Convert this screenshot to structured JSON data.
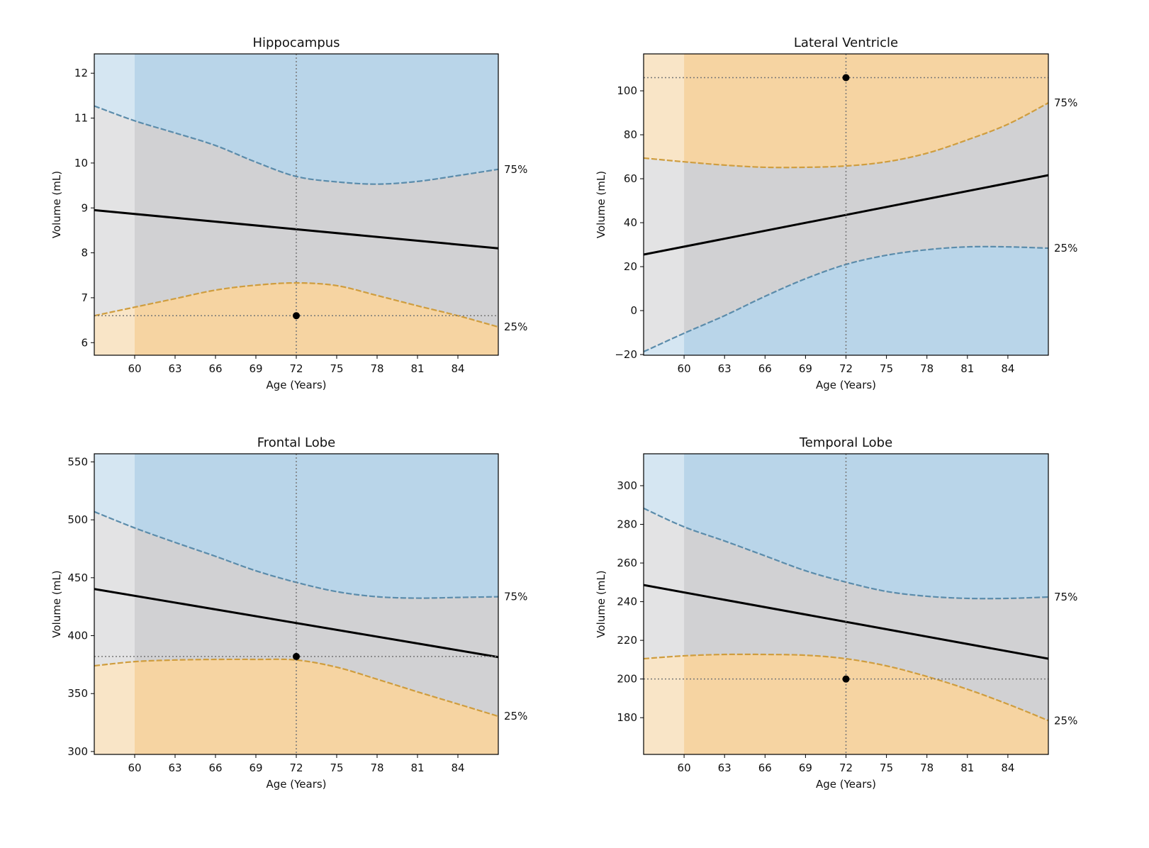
{
  "chart_data": [
    {
      "type": "line",
      "title": "Hippocampus",
      "xlabel": "Age (Years)",
      "ylabel": "Volume (mL)",
      "xlim": [
        57,
        87
      ],
      "ylim": [
        5.72,
        12.43
      ],
      "xticks": [
        60,
        63,
        66,
        69,
        72,
        75,
        78,
        81,
        84
      ],
      "yticks": [
        6,
        7,
        8,
        9,
        10,
        11,
        12
      ],
      "reference_line": {
        "x": 72,
        "y": 6.6
      },
      "patient_point": {
        "age": 72,
        "volume": 6.6
      },
      "upper_region": "blue",
      "lower_region": "orange",
      "series": [
        {
          "name": "75%",
          "x": [
            57,
            60,
            63,
            66,
            69,
            72,
            75,
            78,
            81,
            84,
            87
          ],
          "y": [
            11.27,
            10.94,
            10.67,
            10.39,
            10.02,
            9.7,
            9.58,
            9.53,
            9.59,
            9.72,
            9.86
          ]
        },
        {
          "name": "median",
          "x": [
            57,
            87
          ],
          "y": [
            8.95,
            8.1
          ]
        },
        {
          "name": "25%",
          "x": [
            57,
            60,
            63,
            66,
            69,
            72,
            75,
            78,
            81,
            84,
            87
          ],
          "y": [
            6.6,
            6.79,
            6.98,
            7.17,
            7.28,
            7.33,
            7.27,
            7.05,
            6.82,
            6.6,
            6.35
          ]
        }
      ]
    },
    {
      "type": "line",
      "title": "Lateral Ventricle",
      "xlabel": "Age (Years)",
      "ylabel": "Volume (mL)",
      "xlim": [
        57,
        87
      ],
      "ylim": [
        -20.3,
        116.8
      ],
      "xticks": [
        60,
        63,
        66,
        69,
        72,
        75,
        78,
        81,
        84
      ],
      "yticks": [
        -20,
        0,
        20,
        40,
        60,
        80,
        100
      ],
      "reference_line": {
        "x": 72,
        "y": 106
      },
      "patient_point": {
        "age": 72,
        "volume": 106
      },
      "upper_region": "orange",
      "lower_region": "blue",
      "series": [
        {
          "name": "75%",
          "x": [
            57,
            60,
            63,
            66,
            69,
            72,
            75,
            78,
            81,
            84,
            87
          ],
          "y": [
            69.4,
            67.7,
            66.2,
            65.2,
            65.2,
            65.8,
            67.7,
            71.6,
            77.7,
            84.8,
            94.5
          ]
        },
        {
          "name": "median",
          "x": [
            57,
            87
          ],
          "y": [
            25.5,
            61.6
          ]
        },
        {
          "name": "25%",
          "x": [
            57,
            60,
            63,
            66,
            69,
            72,
            75,
            78,
            81,
            84,
            87
          ],
          "y": [
            -18.7,
            -10.3,
            -2.3,
            6.5,
            14.5,
            21.0,
            25.2,
            27.7,
            29.0,
            29.0,
            28.4
          ]
        }
      ]
    },
    {
      "type": "line",
      "title": "Frontal Lobe",
      "xlabel": "Age (Years)",
      "ylabel": "Volume (mL)",
      "xlim": [
        57,
        87
      ],
      "ylim": [
        297.5,
        557
      ],
      "xticks": [
        60,
        63,
        66,
        69,
        72,
        75,
        78,
        81,
        84
      ],
      "yticks": [
        300,
        350,
        400,
        450,
        500,
        550
      ],
      "reference_line": {
        "x": 72,
        "y": 382
      },
      "patient_point": {
        "age": 72,
        "volume": 382
      },
      "upper_region": "blue",
      "lower_region": "orange",
      "series": [
        {
          "name": "75%",
          "x": [
            57,
            60,
            63,
            66,
            69,
            72,
            75,
            78,
            81,
            84,
            87
          ],
          "y": [
            507,
            493,
            480.5,
            468.5,
            456,
            446,
            438,
            433.6,
            432.4,
            433,
            433.6
          ]
        },
        {
          "name": "median",
          "x": [
            57,
            87
          ],
          "y": [
            440.3,
            381.5
          ]
        },
        {
          "name": "25%",
          "x": [
            57,
            60,
            63,
            66,
            69,
            72,
            75,
            78,
            81,
            84,
            87
          ],
          "y": [
            374,
            377.6,
            379,
            379.5,
            379.5,
            379,
            372.8,
            362.4,
            351.5,
            341,
            330.4
          ]
        }
      ]
    },
    {
      "type": "line",
      "title": "Temporal Lobe",
      "xlabel": "Age (Years)",
      "ylabel": "Volume (mL)",
      "xlim": [
        57,
        87
      ],
      "ylim": [
        161,
        316.5
      ],
      "xticks": [
        60,
        63,
        66,
        69,
        72,
        75,
        78,
        81,
        84
      ],
      "yticks": [
        180,
        200,
        220,
        240,
        260,
        280,
        300
      ],
      "reference_line": {
        "x": 72,
        "y": 200
      },
      "patient_point": {
        "age": 72,
        "volume": 200
      },
      "upper_region": "blue",
      "lower_region": "orange",
      "series": [
        {
          "name": "75%",
          "x": [
            57,
            60,
            63,
            66,
            69,
            72,
            75,
            78,
            81,
            84,
            87
          ],
          "y": [
            288.3,
            278.7,
            271.4,
            263.7,
            256,
            250.1,
            245.3,
            242.8,
            241.7,
            241.7,
            242.4
          ]
        },
        {
          "name": "median",
          "x": [
            57,
            87
          ],
          "y": [
            248.6,
            210.5
          ]
        },
        {
          "name": "25%",
          "x": [
            57,
            60,
            63,
            66,
            69,
            72,
            75,
            78,
            81,
            84,
            87
          ],
          "y": [
            210.5,
            212,
            212.7,
            212.7,
            212.3,
            210.5,
            206.8,
            201.3,
            194.7,
            187,
            178.5
          ]
        }
      ]
    }
  ],
  "colors": {
    "blue_fill": "#b9d5e9",
    "orange_fill": "#f6d4a2",
    "gray_fill": "#d1d1d3",
    "blue_line": "#5b8cab",
    "orange_line": "#cf9d3e",
    "median_line": "#000000",
    "ref_line": "#777777",
    "left_shade": "#ffffff"
  },
  "labels": {
    "upper_pct": "75%",
    "lower_pct": "25%"
  },
  "shade_until_age": 60
}
